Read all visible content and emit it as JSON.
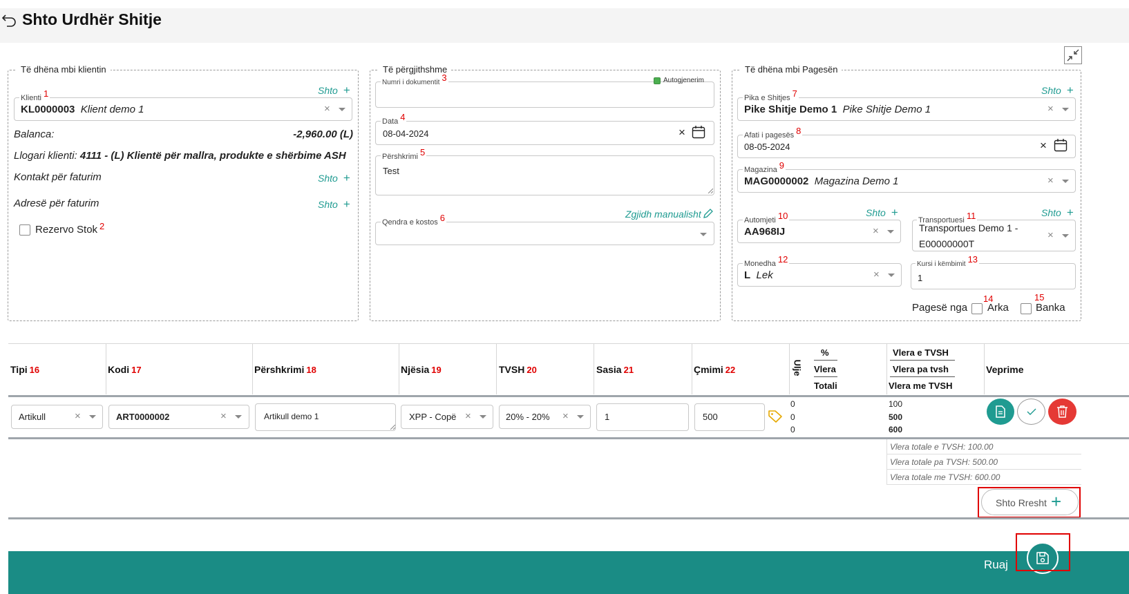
{
  "header": {
    "title": "Shto Urdhër Shitje"
  },
  "client_section": {
    "legend": "Të dhëna mbi klientin",
    "klienti_label": "Klienti",
    "klienti_num": "1",
    "klienti_code": "KL0000003",
    "klienti_name": "Klient demo 1",
    "shto": "Shto",
    "balanca_label": "Balanca:",
    "balanca_value": "-2,960.00 (L)",
    "llogari_label": "Llogari klienti:",
    "llogari_value": "4111 - (L) Klientë për mallra, produkte e shërbime ASH",
    "kontakt_label": "Kontakt për faturim",
    "adrese_label": "Adresë për faturim",
    "rezervo_label": "Rezervo Stok",
    "rezervo_num": "2"
  },
  "general_section": {
    "legend": "Të përgjithshme",
    "numri_label": "Numri i dokumentit",
    "numri_num": "3",
    "autogjenerim_label": "Autogjenerim",
    "data_label": "Data",
    "data_num": "4",
    "data_value": "08-04-2024",
    "pershkrimi_label": "Përshkrimi",
    "pershkrimi_num": "5",
    "pershkrimi_value": "Test",
    "zgjidh_label": "Zgjidh manualisht",
    "qendra_label": "Qendra e kostos",
    "qendra_num": "6"
  },
  "payment_section": {
    "legend": "Të dhëna mbi Pagesën",
    "pika_label": "Pika e Shitjes",
    "pika_num": "7",
    "pika_code": "Pike Shitje Demo 1",
    "pika_name": "Pike Shitje Demo 1",
    "afati_label": "Afati i pagesës",
    "afati_num": "8",
    "afati_value": "08-05-2024",
    "magazina_label": "Magazina",
    "magazina_num": "9",
    "magazina_code": "MAG0000002",
    "magazina_name": "Magazina Demo 1",
    "automjeti_label": "Automjeti",
    "automjeti_num": "10",
    "automjeti_value": "AA968IJ",
    "transportuesi_label": "Transportuesi",
    "transportuesi_num": "11",
    "transportuesi_line1": "Transportues Demo 1 -",
    "transportuesi_line2": "E00000000T",
    "monedha_label": "Monedha",
    "monedha_num": "12",
    "monedha_code": "L",
    "monedha_name": "Lek",
    "kursi_label": "Kursi i këmbimit",
    "kursi_num": "13",
    "kursi_value": "1",
    "pagese_nga_label": "Pagesë nga",
    "arka_label": "Arka",
    "arka_num": "14",
    "banka_label": "Banka",
    "banka_num": "15"
  },
  "table": {
    "headers": {
      "tipi": "Tipi",
      "tipi_num": "16",
      "kodi": "Kodi",
      "kodi_num": "17",
      "pershkrimi": "Përshkrimi",
      "pershkrimi_num": "18",
      "njesia": "Njësia",
      "njesia_num": "19",
      "tvsh": "TVSH",
      "tvsh_num": "20",
      "sasia": "Sasia",
      "sasia_num": "21",
      "cmimi": "Çmimi",
      "cmimi_num": "22",
      "ulje": "Ulje",
      "pct": "%",
      "vlera": "Vlera",
      "totali": "Totali",
      "vlera_tvsh": "Vlera e TVSH",
      "vlera_pa_tvsh": "Vlera pa tvsh",
      "vlera_me_tvsh": "Vlera me TVSH",
      "veprime": "Veprime"
    },
    "row": {
      "tipi": "Artikull",
      "kodi": "ART0000002",
      "pershkrimi": "Artikull demo 1",
      "njesia": "XPP - Copë",
      "tvsh": "20% - 20%",
      "sasia": "1",
      "cmimi": "500",
      "ulje_pct": "0",
      "ulje_vlera": "0",
      "ulje_totali": "0",
      "vlera_tvsh": "100",
      "vlera_pa_tvsh": "500",
      "vlera_me_tvsh": "600"
    },
    "summary": {
      "total_tvsh": "Vlera totale e TVSH: 100.00",
      "total_pa_tvsh": "Vlera totale pa TVSH: 500.00",
      "total_me_tvsh": "Vlera totale me TVSH: 600.00"
    },
    "shto_rresht": "Shto Rresht"
  },
  "footer": {
    "ruaj": "Ruaj"
  },
  "colors": {
    "teal": "#1f9b91",
    "red": "#e53935",
    "dark_teal": "#1a8c85"
  }
}
